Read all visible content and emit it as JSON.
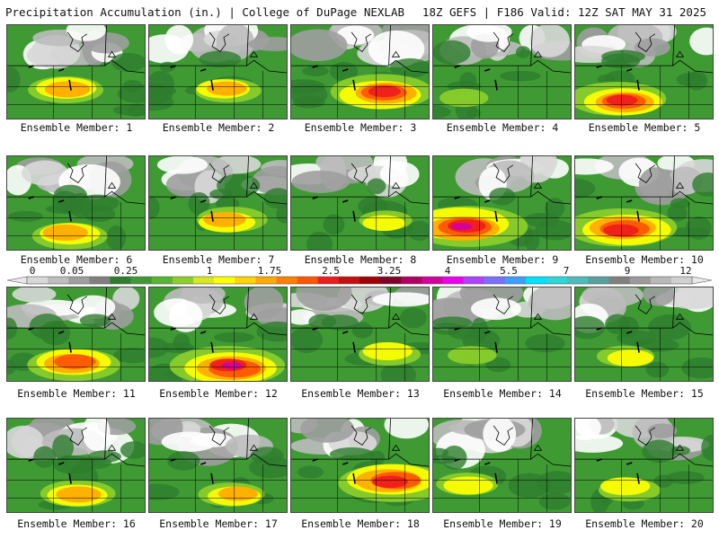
{
  "header": {
    "title": "Precipitation Accumulation (in.) | College of DuPage NEXLAB",
    "run_info": "18Z GEFS | F186 Valid: 12Z SAT MAY 31 2025"
  },
  "legend": {
    "tick_labels": [
      "0",
      "0.05",
      "0.25",
      "1",
      "1.75",
      "2.5",
      "3.25",
      "4",
      "5.5",
      "7",
      "9",
      "12"
    ],
    "colors": [
      "#d8d8d8",
      "#bdbdbd",
      "#9e9e9e",
      "#808080",
      "#2e7d2e",
      "#3f9a33",
      "#55b530",
      "#8ccf2b",
      "#d9e81f",
      "#ffff00",
      "#ffd400",
      "#ffaa00",
      "#ff8000",
      "#ff5500",
      "#ee1c1c",
      "#c80f0f",
      "#a00000",
      "#80002a",
      "#b00060",
      "#d400a0",
      "#ee00ee",
      "#b040ff",
      "#7a70ff",
      "#3aa0ff",
      "#00e0ff",
      "#2ad8d8",
      "#4cbcbc",
      "#58a0a0",
      "#808080",
      "#9a9a9a",
      "#b8b8b8",
      "#d0d0d0"
    ]
  },
  "panels": [
    {
      "label": "Ensemble Member: 1",
      "intensity": 0.45
    },
    {
      "label": "Ensemble Member: 2",
      "intensity": 0.35
    },
    {
      "label": "Ensemble Member: 3",
      "intensity": 0.75
    },
    {
      "label": "Ensemble Member: 4",
      "intensity": 0.15
    },
    {
      "label": "Ensemble Member: 5",
      "intensity": 0.7
    },
    {
      "label": "Ensemble Member: 6",
      "intensity": 0.45
    },
    {
      "label": "Ensemble Member: 7",
      "intensity": 0.4
    },
    {
      "label": "Ensemble Member: 8",
      "intensity": 0.2
    },
    {
      "label": "Ensemble Member: 9",
      "intensity": 0.95
    },
    {
      "label": "Ensemble Member: 10",
      "intensity": 0.85
    },
    {
      "label": "Ensemble Member: 11",
      "intensity": 0.65
    },
    {
      "label": "Ensemble Member: 12",
      "intensity": 0.9
    },
    {
      "label": "Ensemble Member: 13",
      "intensity": 0.3
    },
    {
      "label": "Ensemble Member: 14",
      "intensity": 0.15
    },
    {
      "label": "Ensemble Member: 15",
      "intensity": 0.25
    },
    {
      "label": "Ensemble Member: 16",
      "intensity": 0.45
    },
    {
      "label": "Ensemble Member: 17",
      "intensity": 0.35
    },
    {
      "label": "Ensemble Member: 18",
      "intensity": 0.85
    },
    {
      "label": "Ensemble Member: 19",
      "intensity": 0.3
    },
    {
      "label": "Ensemble Member: 20",
      "intensity": 0.3
    }
  ]
}
